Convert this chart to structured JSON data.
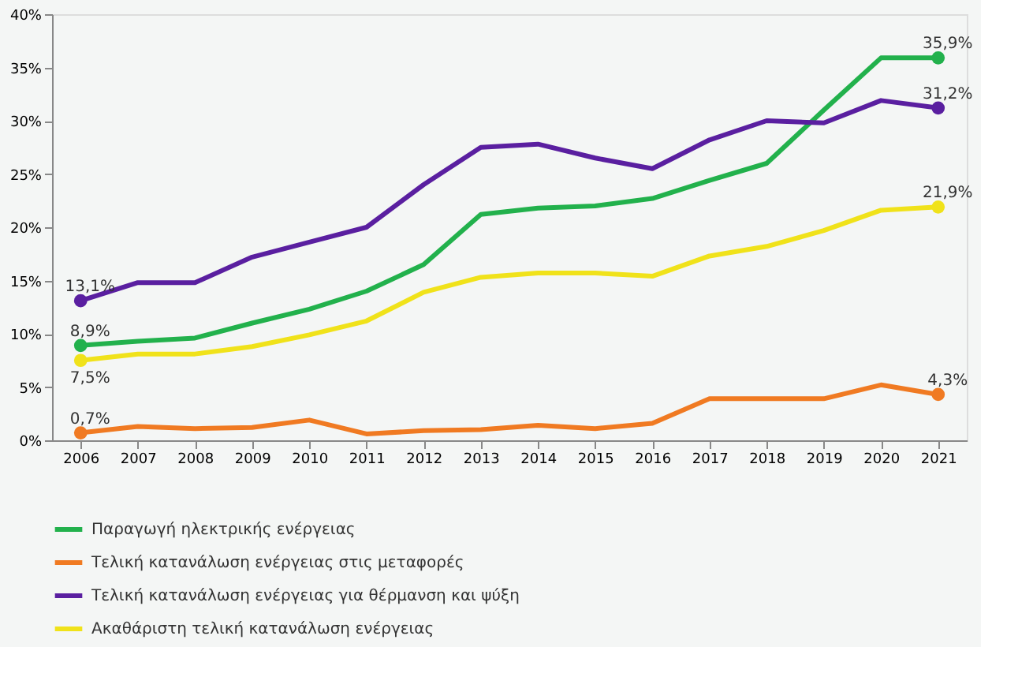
{
  "chart_data": {
    "type": "line",
    "categories": [
      "2006",
      "2007",
      "2008",
      "2009",
      "2010",
      "2011",
      "2012",
      "2013",
      "2014",
      "2015",
      "2016",
      "2017",
      "2018",
      "2019",
      "2020",
      "2021"
    ],
    "series": [
      {
        "name": "Παραγωγή ηλεκτρικής ενέργειας",
        "color": "#22b14c",
        "values": [
          8.9,
          9.3,
          9.6,
          11,
          12.3,
          14,
          16.5,
          21.2,
          21.8,
          22,
          22.7,
          24.4,
          26,
          31,
          35.9,
          35.9
        ],
        "value_labels": [
          "8,9%",
          null,
          null,
          null,
          null,
          null,
          null,
          null,
          null,
          null,
          null,
          null,
          null,
          null,
          null,
          "35,9%"
        ]
      },
      {
        "name": "Τελική κατανάλωση ενέργειας στις μεταφορές",
        "color": "#f07a22",
        "values": [
          0.7,
          1.3,
          1.1,
          1.2,
          1.9,
          0.6,
          0.9,
          1.0,
          1.4,
          1.1,
          1.6,
          3.9,
          3.9,
          3.9,
          5.2,
          4.3
        ],
        "value_labels": [
          "0,7%",
          null,
          null,
          null,
          null,
          null,
          null,
          null,
          null,
          null,
          null,
          null,
          null,
          null,
          null,
          "4,3%"
        ]
      },
      {
        "name": "Τελική κατανάλωση ενέργειας για θέρμανση και ψύξη",
        "color": "#5a1fa0",
        "values": [
          13.1,
          14.8,
          14.8,
          17.2,
          18.6,
          20,
          24,
          27.5,
          27.8,
          26.5,
          25.5,
          28.2,
          30,
          29.8,
          31.9,
          31.2
        ],
        "value_labels": [
          "13,1%",
          null,
          null,
          null,
          null,
          null,
          null,
          null,
          null,
          null,
          null,
          null,
          null,
          null,
          null,
          "31,2%"
        ]
      },
      {
        "name": "Ακαθάριστη τελική κατανάλωση ενέργειας",
        "color": "#f0e21a",
        "values": [
          7.5,
          8.1,
          8.1,
          8.8,
          9.9,
          11.2,
          13.9,
          15.3,
          15.7,
          15.7,
          15.4,
          17.3,
          18.2,
          19.7,
          21.6,
          21.9
        ],
        "value_labels": [
          "7,5%",
          null,
          null,
          null,
          null,
          null,
          null,
          null,
          null,
          null,
          null,
          null,
          null,
          null,
          null,
          "21,9%"
        ]
      }
    ],
    "ylim": [
      0,
      40
    ],
    "yticks": [
      {
        "value": 0,
        "label": "0%"
      },
      {
        "value": 5,
        "label": "5%"
      },
      {
        "value": 10,
        "label": "10%"
      },
      {
        "value": 15,
        "label": "15%"
      },
      {
        "value": 20,
        "label": "20%"
      },
      {
        "value": 25,
        "label": "25%"
      },
      {
        "value": 30,
        "label": "30%"
      },
      {
        "value": 35,
        "label": "35%"
      },
      {
        "value": 40,
        "label": "40%"
      }
    ],
    "grid": false,
    "legend": "bottom",
    "line_style": "solid"
  }
}
